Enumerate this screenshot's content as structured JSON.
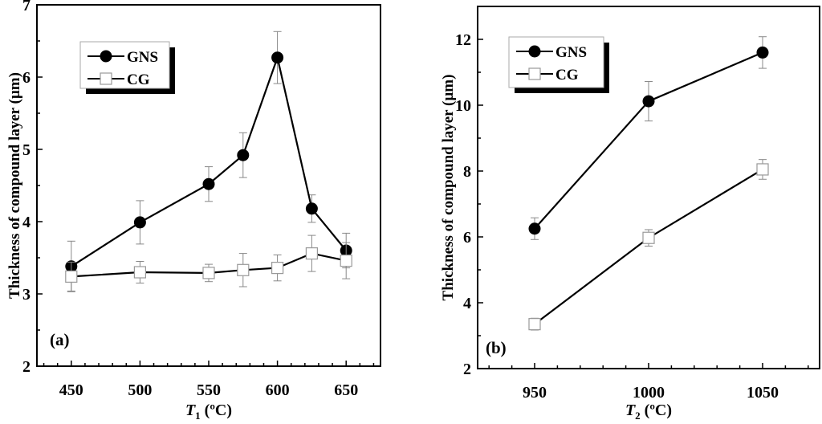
{
  "chart_data": [
    {
      "type": "line",
      "panel_label": "(a)",
      "xlabel": "T",
      "xlabel_sub": "1",
      "xlabel_unit": " (ºC)",
      "ylabel": "Thickness of compound layer (µm)",
      "xlim": [
        425,
        675
      ],
      "ylim": [
        2,
        7
      ],
      "xticks": [
        450,
        500,
        550,
        600,
        650
      ],
      "yticks": [
        2,
        3,
        4,
        5,
        6,
        7
      ],
      "grid": false,
      "legend_position": "top-left",
      "x": [
        450,
        500,
        550,
        575,
        600,
        625,
        650
      ],
      "series": [
        {
          "name": "GNS",
          "marker": "filled-circle",
          "values": [
            3.38,
            3.99,
            4.52,
            4.92,
            6.27,
            4.18,
            3.6
          ],
          "errors": [
            0.35,
            0.3,
            0.24,
            0.31,
            0.36,
            0.19,
            0.24
          ]
        },
        {
          "name": "CG",
          "marker": "open-square",
          "values": [
            3.24,
            3.3,
            3.29,
            3.33,
            3.36,
            3.56,
            3.46
          ],
          "errors": [
            0.2,
            0.15,
            0.12,
            0.23,
            0.18,
            0.25,
            0.25
          ]
        }
      ]
    },
    {
      "type": "line",
      "panel_label": "(b)",
      "xlabel": "T",
      "xlabel_sub": "2",
      "xlabel_unit": " (ºC)",
      "ylabel": "Thickness of compound layer (µm)",
      "xlim": [
        925,
        1075
      ],
      "ylim": [
        2,
        13
      ],
      "xticks": [
        950,
        1000,
        1050
      ],
      "yticks": [
        2,
        4,
        6,
        8,
        10,
        12
      ],
      "grid": false,
      "legend_position": "top-left",
      "x": [
        950,
        1000,
        1050
      ],
      "series": [
        {
          "name": "GNS",
          "marker": "filled-circle",
          "values": [
            6.25,
            10.12,
            11.6
          ],
          "errors": [
            0.33,
            0.6,
            0.48
          ]
        },
        {
          "name": "CG",
          "marker": "open-square",
          "values": [
            3.35,
            5.97,
            8.05
          ],
          "errors": [
            0.18,
            0.25,
            0.3
          ]
        }
      ]
    }
  ]
}
